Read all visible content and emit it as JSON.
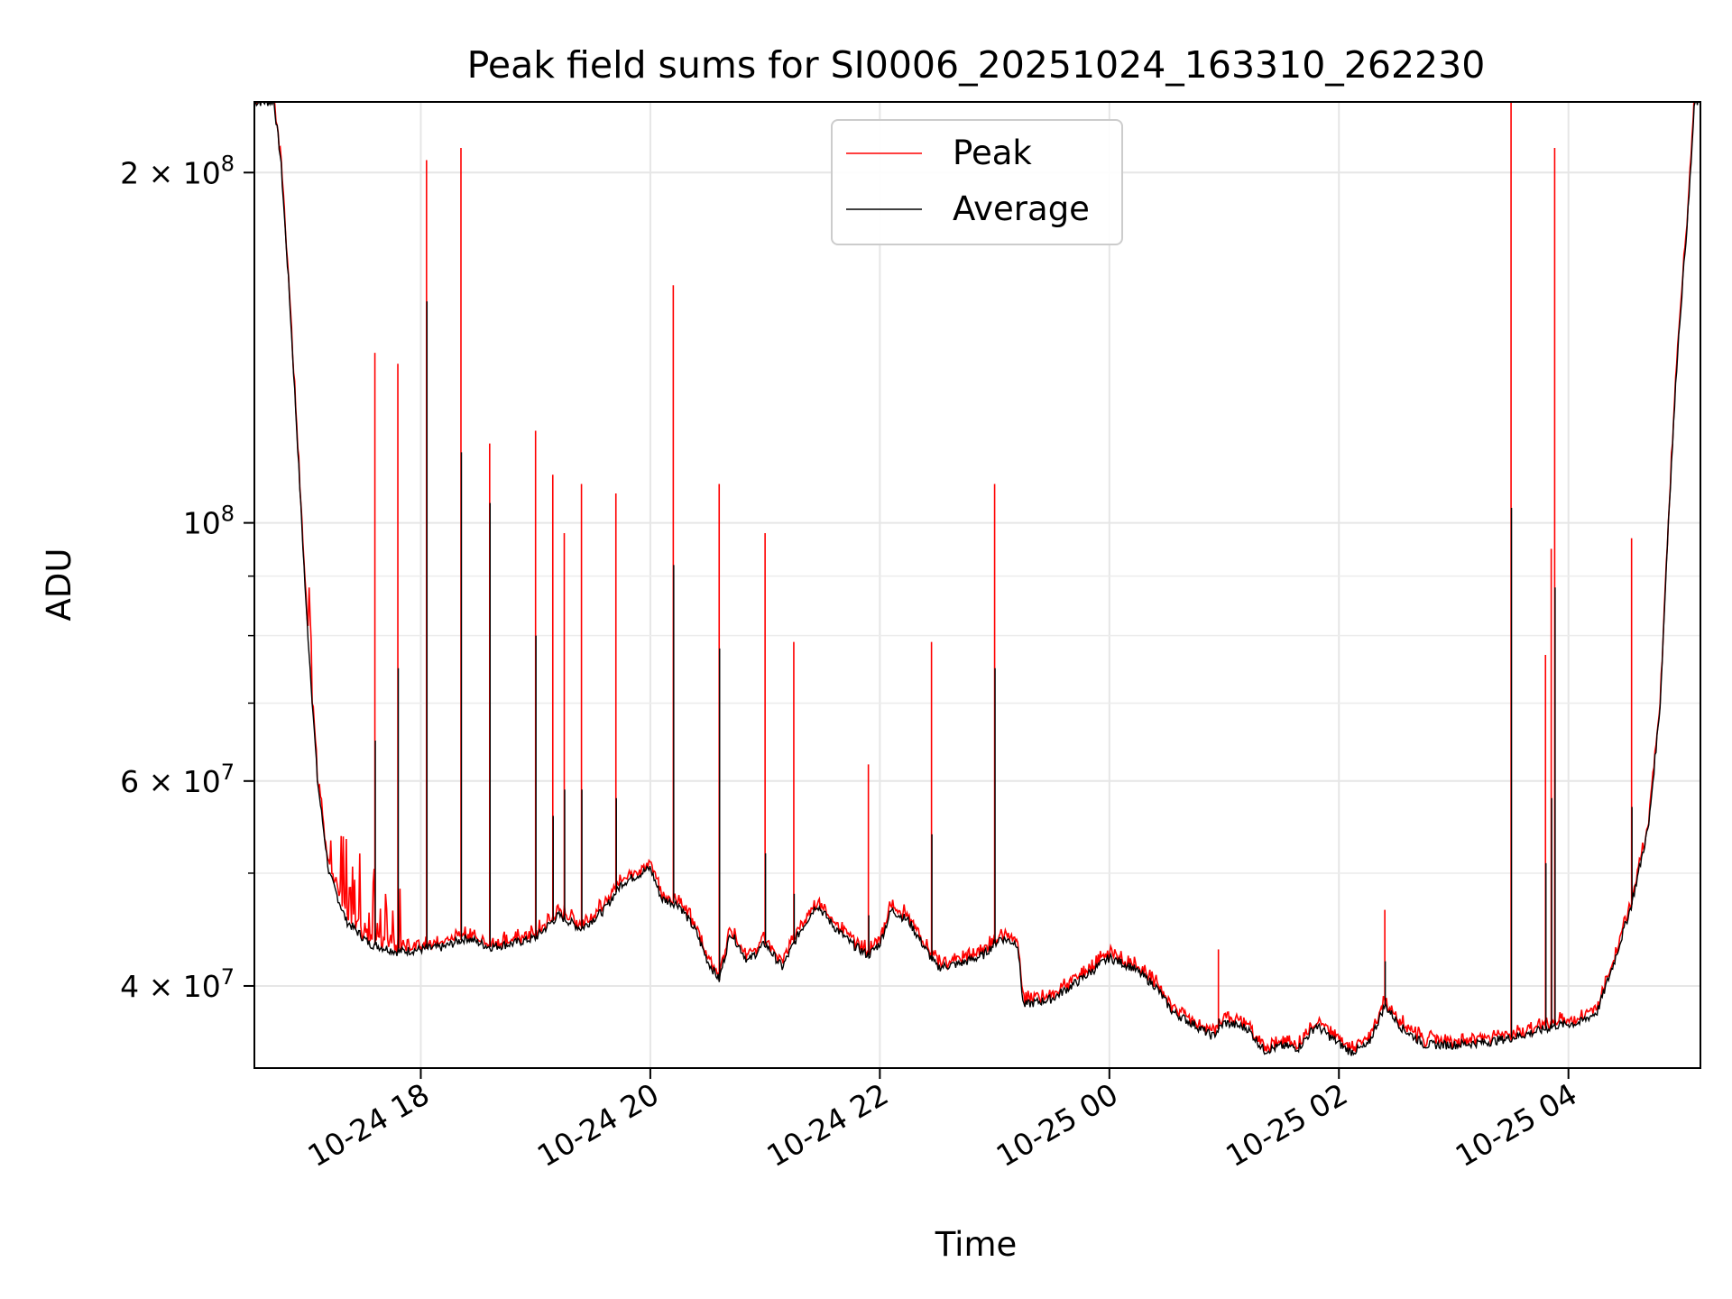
{
  "chart_data": {
    "type": "line",
    "title": "Peak field sums for SI0006_20251024_163310_262230",
    "xlabel": "Time",
    "ylabel": "ADU",
    "yscale": "log",
    "ylim": [
      34000000,
      230000000
    ],
    "xlim_hours": [
      16.55,
      29.15
    ],
    "grid": true,
    "legend": {
      "placement": "top-center",
      "entries": [
        {
          "name": "Peak",
          "color": "#ff0000"
        },
        {
          "name": "Average",
          "color": "#000000"
        }
      ]
    },
    "x_ticks": [
      {
        "label": "10-24 18",
        "hour": 18
      },
      {
        "label": "10-24 20",
        "hour": 20
      },
      {
        "label": "10-24 22",
        "hour": 22
      },
      {
        "label": "10-25 00",
        "hour": 24
      },
      {
        "label": "10-25 02",
        "hour": 26
      },
      {
        "label": "10-25 04",
        "hour": 28
      }
    ],
    "y_ticks": [
      {
        "base": "4 × 10",
        "exp": "7",
        "value": 40000000
      },
      {
        "base": "6 × 10",
        "exp": "7",
        "value": 60000000
      },
      {
        "base": "10",
        "exp": "8",
        "value": 100000000
      },
      {
        "base": "2 × 10",
        "exp": "8",
        "value": 200000000
      }
    ],
    "y_minor_ticks": [
      50000000,
      70000000,
      80000000,
      90000000
    ],
    "series": [
      {
        "name": "Average",
        "color": "#000000",
        "points": [
          [
            16.55,
            230000000
          ],
          [
            16.72,
            230000000
          ],
          [
            16.78,
            205000000
          ],
          [
            16.85,
            160000000
          ],
          [
            16.92,
            120000000
          ],
          [
            17.0,
            85000000
          ],
          [
            17.1,
            60000000
          ],
          [
            17.2,
            50000000
          ],
          [
            17.35,
            45500000
          ],
          [
            17.55,
            43500000
          ],
          [
            17.8,
            42800000
          ],
          [
            18.0,
            43000000
          ],
          [
            18.2,
            43200000
          ],
          [
            18.4,
            44000000
          ],
          [
            18.6,
            43200000
          ],
          [
            18.8,
            43500000
          ],
          [
            19.0,
            44000000
          ],
          [
            19.2,
            46000000
          ],
          [
            19.4,
            44800000
          ],
          [
            19.6,
            46500000
          ],
          [
            19.75,
            49000000
          ],
          [
            20.0,
            50500000
          ],
          [
            20.1,
            47500000
          ],
          [
            20.25,
            47000000
          ],
          [
            20.4,
            44500000
          ],
          [
            20.5,
            42000000
          ],
          [
            20.6,
            40500000
          ],
          [
            20.7,
            44500000
          ],
          [
            20.85,
            42000000
          ],
          [
            21.0,
            43500000
          ],
          [
            21.15,
            41500000
          ],
          [
            21.3,
            44500000
          ],
          [
            21.45,
            47000000
          ],
          [
            21.6,
            45000000
          ],
          [
            21.75,
            43500000
          ],
          [
            21.9,
            42500000
          ],
          [
            22.0,
            43500000
          ],
          [
            22.1,
            46500000
          ],
          [
            22.25,
            45500000
          ],
          [
            22.4,
            43000000
          ],
          [
            22.5,
            41500000
          ],
          [
            22.7,
            41800000
          ],
          [
            22.9,
            42500000
          ],
          [
            23.05,
            44000000
          ],
          [
            23.2,
            43500000
          ],
          [
            23.25,
            38500000
          ],
          [
            23.5,
            39000000
          ],
          [
            23.75,
            40500000
          ],
          [
            24.0,
            42300000
          ],
          [
            24.2,
            41500000
          ],
          [
            24.4,
            40000000
          ],
          [
            24.55,
            38000000
          ],
          [
            24.75,
            37000000
          ],
          [
            24.9,
            36200000
          ],
          [
            25.0,
            37200000
          ],
          [
            25.2,
            36800000
          ],
          [
            25.35,
            35200000
          ],
          [
            25.5,
            35500000
          ],
          [
            25.65,
            35400000
          ],
          [
            25.8,
            37000000
          ],
          [
            25.95,
            36000000
          ],
          [
            26.1,
            35100000
          ],
          [
            26.25,
            35500000
          ],
          [
            26.4,
            38500000
          ],
          [
            26.55,
            36800000
          ],
          [
            26.75,
            35600000
          ],
          [
            27.0,
            35600000
          ],
          [
            27.3,
            35800000
          ],
          [
            27.5,
            36100000
          ],
          [
            27.7,
            36500000
          ],
          [
            27.9,
            37000000
          ],
          [
            28.1,
            37200000
          ],
          [
            28.25,
            38000000
          ],
          [
            28.4,
            42000000
          ],
          [
            28.55,
            47000000
          ],
          [
            28.7,
            55000000
          ],
          [
            28.8,
            70000000
          ],
          [
            28.87,
            100000000
          ],
          [
            28.95,
            140000000
          ],
          [
            29.05,
            190000000
          ],
          [
            29.1,
            230000000
          ],
          [
            29.15,
            230000000
          ]
        ]
      }
    ],
    "peak_spikes": [
      {
        "time_hour": 17.6,
        "peak": 140000000,
        "average": 65000000
      },
      {
        "time_hour": 17.8,
        "peak": 137000000,
        "average": 75000000
      },
      {
        "time_hour": 18.05,
        "peak": 205000000,
        "average": 155000000
      },
      {
        "time_hour": 18.35,
        "peak": 210000000,
        "average": 115000000
      },
      {
        "time_hour": 18.6,
        "peak": 117000000,
        "average": 104000000
      },
      {
        "time_hour": 19.0,
        "peak": 120000000,
        "average": 80000000
      },
      {
        "time_hour": 19.15,
        "peak": 110000000,
        "average": 56000000
      },
      {
        "time_hour": 19.25,
        "peak": 98000000,
        "average": 59000000
      },
      {
        "time_hour": 19.4,
        "peak": 108000000,
        "average": 59000000
      },
      {
        "time_hour": 19.7,
        "peak": 106000000,
        "average": 58000000
      },
      {
        "time_hour": 20.2,
        "peak": 160000000,
        "average": 92000000
      },
      {
        "time_hour": 20.6,
        "peak": 108000000,
        "average": 78000000
      },
      {
        "time_hour": 21.0,
        "peak": 98000000,
        "average": 52000000
      },
      {
        "time_hour": 21.25,
        "peak": 79000000,
        "average": 48000000
      },
      {
        "time_hour": 21.9,
        "peak": 62000000,
        "average": 46000000
      },
      {
        "time_hour": 22.45,
        "peak": 79000000,
        "average": 54000000
      },
      {
        "time_hour": 23.0,
        "peak": 108000000,
        "average": 75000000
      },
      {
        "time_hour": 24.95,
        "peak": 43000000,
        "average": 37500000
      },
      {
        "time_hour": 26.4,
        "peak": 46500000,
        "average": 42000000
      },
      {
        "time_hour": 27.5,
        "peak": 230000000,
        "average": 103000000
      },
      {
        "time_hour": 27.8,
        "peak": 77000000,
        "average": 51000000
      },
      {
        "time_hour": 27.85,
        "peak": 95000000,
        "average": 58000000
      },
      {
        "time_hour": 27.88,
        "peak": 210000000,
        "average": 88000000
      },
      {
        "time_hour": 28.55,
        "peak": 97000000,
        "average": 57000000
      }
    ]
  }
}
